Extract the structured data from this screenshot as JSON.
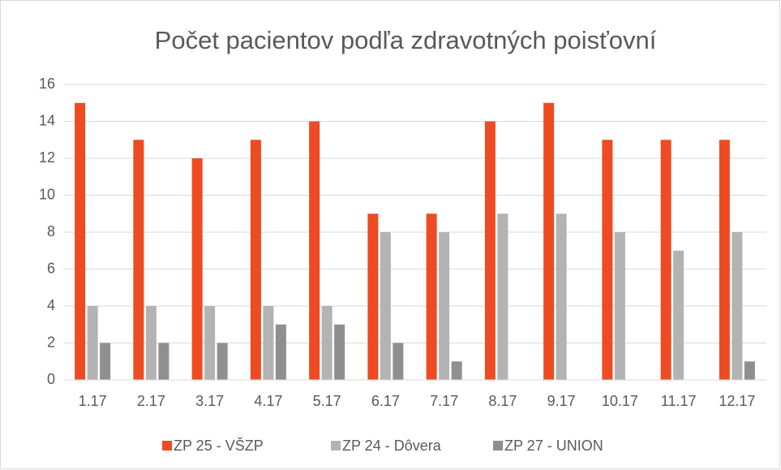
{
  "chart_data": {
    "type": "bar",
    "title": "Počet pacientov podľa zdravotných poisťovní",
    "categories": [
      "1.17",
      "2.17",
      "3.17",
      "4.17",
      "5.17",
      "6.17",
      "7.17",
      "8.17",
      "9.17",
      "10.17",
      "11.17",
      "12.17"
    ],
    "series": [
      {
        "name": "ZP 25 - VŠZP",
        "color": "#ee4b22",
        "values": [
          15,
          13,
          12,
          13,
          14,
          9,
          9,
          14,
          15,
          13,
          13,
          13
        ]
      },
      {
        "name": "ZP 24 - Dôvera",
        "color": "#b3b3b3",
        "values": [
          4,
          4,
          4,
          4,
          4,
          8,
          8,
          9,
          9,
          8,
          7,
          8
        ]
      },
      {
        "name": "ZP 27 - UNION",
        "color": "#8f8f8f",
        "values": [
          2,
          2,
          2,
          3,
          3,
          2,
          1,
          0,
          0,
          0,
          0,
          1
        ]
      }
    ],
    "ylim": [
      0,
      16
    ],
    "yticks": [
      0,
      2,
      4,
      6,
      8,
      10,
      12,
      14,
      16
    ],
    "grid": true,
    "legend": "bottom"
  }
}
